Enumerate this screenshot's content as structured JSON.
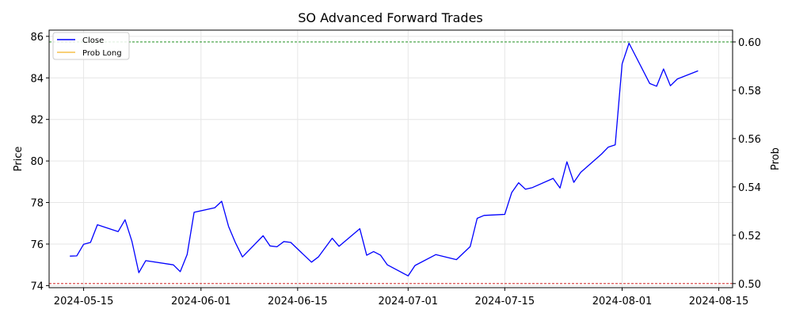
{
  "chart_data": {
    "type": "line",
    "title": "SO Advanced Forward Trades",
    "ylabel": "Price",
    "y2label": "Prob",
    "ylim": [
      73.9,
      86.3
    ],
    "y2lim": [
      0.4983,
      0.6049
    ],
    "xlim": [
      "2024-05-10",
      "2024-08-17"
    ],
    "x_ticks": [
      "2024-05-15",
      "2024-06-01",
      "2024-06-15",
      "2024-07-01",
      "2024-07-15",
      "2024-08-01",
      "2024-08-15"
    ],
    "y_ticks": [
      74,
      76,
      78,
      80,
      82,
      84,
      86
    ],
    "y2_ticks": [
      0.5,
      0.52,
      0.54,
      0.56,
      0.58,
      0.6
    ],
    "y2_tick_labels": [
      "0.50",
      "0.52",
      "0.54",
      "0.56",
      "0.58",
      "0.60"
    ],
    "grid": true,
    "legend_position": "top-left",
    "legend": [
      {
        "label": "Close",
        "color": "#0000ff",
        "style": "solid"
      },
      {
        "label": "Prob Long",
        "color": "#f5c04a",
        "style": "solid"
      }
    ],
    "hlines": [
      {
        "axis": "y2",
        "value": 0.6,
        "color": "#008000",
        "style": "dashed"
      },
      {
        "axis": "y2",
        "value": 0.5,
        "color": "#cc0000",
        "style": "dashed"
      }
    ],
    "series": [
      {
        "name": "Close",
        "color": "#0000ff",
        "points": [
          [
            "2024-05-13",
            75.42
          ],
          [
            "2024-05-14",
            75.43
          ],
          [
            "2024-05-15",
            75.99
          ],
          [
            "2024-05-16",
            76.08
          ],
          [
            "2024-05-17",
            76.93
          ],
          [
            "2024-05-20",
            76.6
          ],
          [
            "2024-05-21",
            77.17
          ],
          [
            "2024-05-22",
            76.13
          ],
          [
            "2024-05-23",
            74.62
          ],
          [
            "2024-05-24",
            75.2
          ],
          [
            "2024-05-28",
            75.0
          ],
          [
            "2024-05-29",
            74.67
          ],
          [
            "2024-05-30",
            75.5
          ],
          [
            "2024-05-31",
            77.53
          ],
          [
            "2024-06-03",
            77.75
          ],
          [
            "2024-06-04",
            78.06
          ],
          [
            "2024-06-05",
            76.85
          ],
          [
            "2024-06-06",
            76.05
          ],
          [
            "2024-06-07",
            75.38
          ],
          [
            "2024-06-10",
            76.4
          ],
          [
            "2024-06-11",
            75.91
          ],
          [
            "2024-06-12",
            75.87
          ],
          [
            "2024-06-13",
            76.12
          ],
          [
            "2024-06-14",
            76.08
          ],
          [
            "2024-06-17",
            75.13
          ],
          [
            "2024-06-18",
            75.38
          ],
          [
            "2024-06-20",
            76.28
          ],
          [
            "2024-06-21",
            75.89
          ],
          [
            "2024-06-24",
            76.74
          ],
          [
            "2024-06-25",
            75.46
          ],
          [
            "2024-06-26",
            75.64
          ],
          [
            "2024-06-27",
            75.47
          ],
          [
            "2024-06-28",
            75.0
          ],
          [
            "2024-07-01",
            74.47
          ],
          [
            "2024-07-02",
            74.97
          ],
          [
            "2024-07-05",
            75.49
          ],
          [
            "2024-07-08",
            75.25
          ],
          [
            "2024-07-10",
            75.88
          ],
          [
            "2024-07-11",
            77.24
          ],
          [
            "2024-07-12",
            77.38
          ],
          [
            "2024-07-15",
            77.43
          ],
          [
            "2024-07-16",
            78.48
          ],
          [
            "2024-07-17",
            78.95
          ],
          [
            "2024-07-18",
            78.64
          ],
          [
            "2024-07-19",
            78.72
          ],
          [
            "2024-07-22",
            79.16
          ],
          [
            "2024-07-23",
            78.7
          ],
          [
            "2024-07-24",
            79.96
          ],
          [
            "2024-07-25",
            78.97
          ],
          [
            "2024-07-26",
            79.45
          ],
          [
            "2024-07-29",
            80.33
          ],
          [
            "2024-07-30",
            80.67
          ],
          [
            "2024-07-31",
            80.78
          ],
          [
            "2024-08-01",
            84.67
          ],
          [
            "2024-08-02",
            85.67
          ],
          [
            "2024-08-05",
            83.73
          ],
          [
            "2024-08-06",
            83.6
          ],
          [
            "2024-08-07",
            84.43
          ],
          [
            "2024-08-08",
            83.62
          ],
          [
            "2024-08-09",
            83.95
          ],
          [
            "2024-08-12",
            84.34
          ]
        ]
      }
    ]
  }
}
